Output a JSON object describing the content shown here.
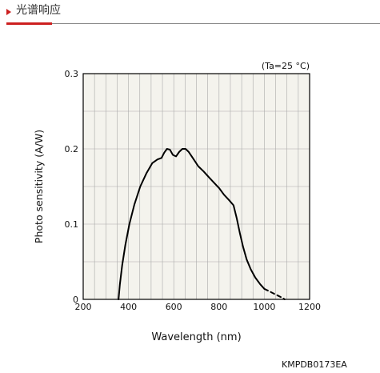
{
  "header": {
    "title": "光谱响应"
  },
  "chart_data": {
    "type": "line",
    "xlabel": "Wavelength (nm)",
    "ylabel": "Photo sensitivity (A/W)",
    "annotation": "(Ta=25 °C)",
    "xlim": [
      200,
      1200
    ],
    "ylim": [
      0,
      0.3
    ],
    "xticks": [
      "200",
      "400",
      "600",
      "800",
      "1000",
      "1200"
    ],
    "yticks": [
      "0",
      "0.1",
      "0.2",
      "0.3"
    ],
    "grid": true,
    "series": [
      {
        "style": "solid",
        "x": [
          356,
          362,
          372,
          386,
          404,
          426,
          452,
          480,
          505,
          528,
          546,
          558,
          570,
          583,
          596,
          610,
          624,
          638,
          652,
          666,
          686,
          708,
          732,
          756,
          778,
          800,
          822,
          844,
          864,
          878,
          892,
          906,
          922,
          940,
          960,
          982,
          1000
        ],
        "y": [
          0.0,
          0.02,
          0.045,
          0.072,
          0.1,
          0.126,
          0.15,
          0.168,
          0.181,
          0.186,
          0.188,
          0.195,
          0.2,
          0.199,
          0.192,
          0.19,
          0.196,
          0.2,
          0.2,
          0.196,
          0.187,
          0.177,
          0.17,
          0.162,
          0.155,
          0.148,
          0.139,
          0.132,
          0.125,
          0.108,
          0.088,
          0.07,
          0.053,
          0.04,
          0.029,
          0.02,
          0.014
        ]
      },
      {
        "style": "dashed",
        "x": [
          1000,
          1020,
          1040,
          1060,
          1080,
          1090
        ],
        "y": [
          0.014,
          0.011,
          0.008,
          0.005,
          0.002,
          0.0
        ]
      }
    ]
  },
  "footer": {
    "code": "KMPDB0173EA"
  },
  "colors": {
    "accent": "#cc1f1f",
    "plot_bg": "#f4f3ed",
    "line": "#000000",
    "grid": "#aaaaaa"
  }
}
